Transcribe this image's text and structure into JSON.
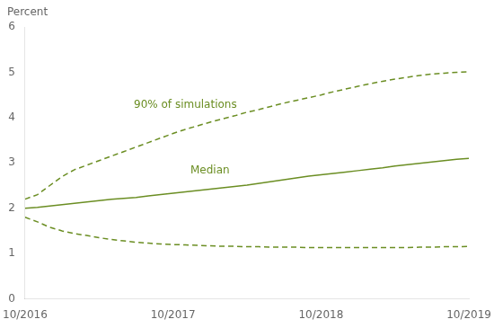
{
  "chart_data": {
    "type": "line",
    "y_label": "Percent",
    "x": [
      0,
      1,
      2,
      3,
      4,
      5,
      6,
      7,
      8,
      9,
      10,
      11,
      12,
      13,
      14,
      15,
      16,
      17,
      18,
      19,
      20,
      21,
      22,
      23,
      24,
      25,
      26,
      27,
      28,
      29,
      30,
      31,
      32,
      33,
      34,
      35,
      36
    ],
    "xlim": [
      0,
      36
    ],
    "xticks": [
      {
        "value": 0,
        "label": "10/2016"
      },
      {
        "value": 12,
        "label": "10/2017"
      },
      {
        "value": 24,
        "label": "10/2018"
      },
      {
        "value": 36,
        "label": "10/2019"
      }
    ],
    "ylim": [
      0,
      6
    ],
    "yticks": [
      0,
      1,
      2,
      3,
      4,
      5,
      6
    ],
    "grid": false,
    "series": [
      {
        "color": "#6b8e23",
        "line_style": "solid",
        "values": [
          2.0,
          2.02,
          2.05,
          2.08,
          2.11,
          2.14,
          2.17,
          2.2,
          2.22,
          2.24,
          2.27,
          2.3,
          2.33,
          2.36,
          2.39,
          2.42,
          2.45,
          2.48,
          2.51,
          2.55,
          2.59,
          2.63,
          2.67,
          2.71,
          2.74,
          2.77,
          2.8,
          2.83,
          2.86,
          2.89,
          2.93,
          2.96,
          2.99,
          3.02,
          3.05,
          3.08,
          3.1
        ]
      },
      {
        "color": "#6b8e23",
        "line_style": "dashed",
        "values": [
          2.2,
          2.3,
          2.5,
          2.7,
          2.85,
          2.95,
          3.05,
          3.15,
          3.25,
          3.35,
          3.45,
          3.55,
          3.65,
          3.74,
          3.82,
          3.9,
          3.97,
          4.04,
          4.12,
          4.18,
          4.25,
          4.32,
          4.38,
          4.44,
          4.5,
          4.57,
          4.63,
          4.69,
          4.75,
          4.8,
          4.85,
          4.89,
          4.93,
          4.96,
          4.98,
          5.0,
          5.01
        ]
      },
      {
        "color": "#6b8e23",
        "line_style": "dashed",
        "values": [
          1.8,
          1.7,
          1.58,
          1.5,
          1.44,
          1.4,
          1.35,
          1.31,
          1.28,
          1.25,
          1.23,
          1.21,
          1.2,
          1.19,
          1.18,
          1.17,
          1.16,
          1.16,
          1.15,
          1.15,
          1.14,
          1.14,
          1.14,
          1.13,
          1.13,
          1.13,
          1.13,
          1.13,
          1.13,
          1.13,
          1.13,
          1.13,
          1.14,
          1.14,
          1.15,
          1.15,
          1.16
        ]
      }
    ],
    "annotations": [
      {
        "text": "90% of simulations",
        "x": 13,
        "y": 4.15,
        "color": "#6b8e23"
      },
      {
        "text": "Median",
        "x": 15,
        "y": 2.72,
        "color": "#6b8e23"
      }
    ]
  }
}
